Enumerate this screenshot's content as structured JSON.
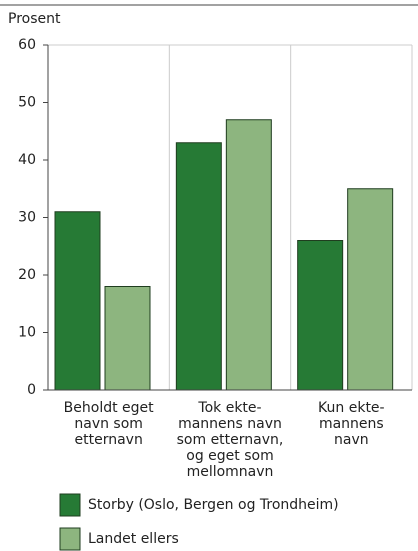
{
  "chart_data": {
    "type": "bar",
    "y_label": "Prosent",
    "categories": [
      [
        "Beholdt eget",
        "navn som",
        "etternavn"
      ],
      [
        "Tok ekte-",
        "mannens navn",
        "som etternavn,",
        "og eget som",
        "mellomnavn"
      ],
      [
        "Kun ekte-",
        "mannens",
        "navn"
      ]
    ],
    "series": [
      {
        "name": "Storby (Oslo, Bergen og Trondheim)",
        "color": "#267a35",
        "values": [
          31,
          43,
          26
        ]
      },
      {
        "name": "Landet ellers",
        "color": "#8db57f",
        "values": [
          18,
          47,
          35
        ]
      }
    ],
    "ylim": [
      0,
      60
    ],
    "yticks": [
      0,
      10,
      20,
      30,
      40,
      50,
      60
    ]
  }
}
